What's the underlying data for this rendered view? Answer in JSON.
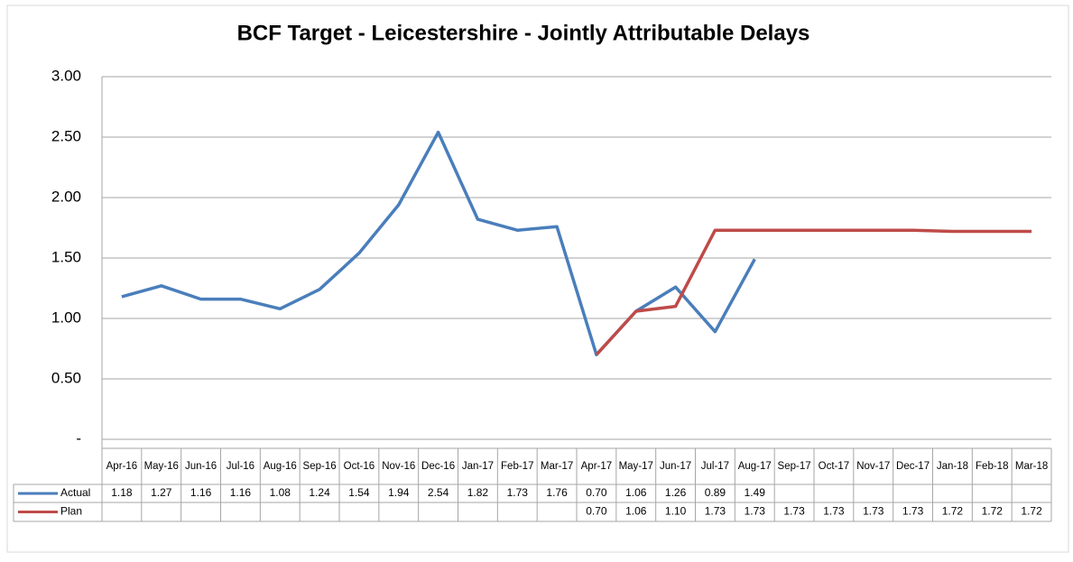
{
  "chart_data": {
    "type": "line",
    "title": "BCF Target - Leicestershire - Jointly Attributable Delays",
    "categories": [
      "Apr-16",
      "May-16",
      "Jun-16",
      "Jul-16",
      "Aug-16",
      "Sep-16",
      "Oct-16",
      "Nov-16",
      "Dec-16",
      "Jan-17",
      "Feb-17",
      "Mar-17",
      "Apr-17",
      "May-17",
      "Jun-17",
      "Jul-17",
      "Aug-17",
      "Sep-17",
      "Oct-17",
      "Nov-17",
      "Dec-17",
      "Jan-18",
      "Feb-18",
      "Mar-18"
    ],
    "series": [
      {
        "name": "Actual",
        "color": "#4a7ebb",
        "values": [
          1.18,
          1.27,
          1.16,
          1.16,
          1.08,
          1.24,
          1.54,
          1.94,
          2.54,
          1.82,
          1.73,
          1.76,
          0.7,
          1.06,
          1.26,
          0.89,
          1.49,
          null,
          null,
          null,
          null,
          null,
          null,
          null
        ],
        "value_labels": [
          "1.18",
          "1.27",
          "1.16",
          "1.16",
          "1.08",
          "1.24",
          "1.54",
          "1.94",
          "2.54",
          "1.82",
          "1.73",
          "1.76",
          "0.70",
          "1.06",
          "1.26",
          "0.89",
          "1.49",
          null,
          null,
          null,
          null,
          null,
          null,
          null
        ]
      },
      {
        "name": "Plan",
        "color": "#be4b48",
        "values": [
          null,
          null,
          null,
          null,
          null,
          null,
          null,
          null,
          null,
          null,
          null,
          null,
          0.7,
          1.06,
          1.1,
          1.73,
          1.73,
          1.73,
          1.73,
          1.73,
          1.73,
          1.72,
          1.72,
          1.72
        ],
        "value_labels": [
          null,
          null,
          null,
          null,
          null,
          null,
          null,
          null,
          null,
          null,
          null,
          null,
          "0.70",
          "1.06",
          "1.10",
          "1.73",
          "1.73",
          "1.73",
          "1.73",
          "1.73",
          "1.73",
          "1.72",
          "1.72",
          "1.72"
        ]
      }
    ],
    "ylim": [
      0,
      3
    ],
    "yticks": [
      {
        "value": 0,
        "label": "-"
      },
      {
        "value": 0.5,
        "label": "0.50"
      },
      {
        "value": 1,
        "label": "1.00"
      },
      {
        "value": 1.5,
        "label": "1.50"
      },
      {
        "value": 2,
        "label": "2.00"
      },
      {
        "value": 2.5,
        "label": "2.50"
      },
      {
        "value": 3,
        "label": "3.00"
      }
    ],
    "grid": true
  }
}
